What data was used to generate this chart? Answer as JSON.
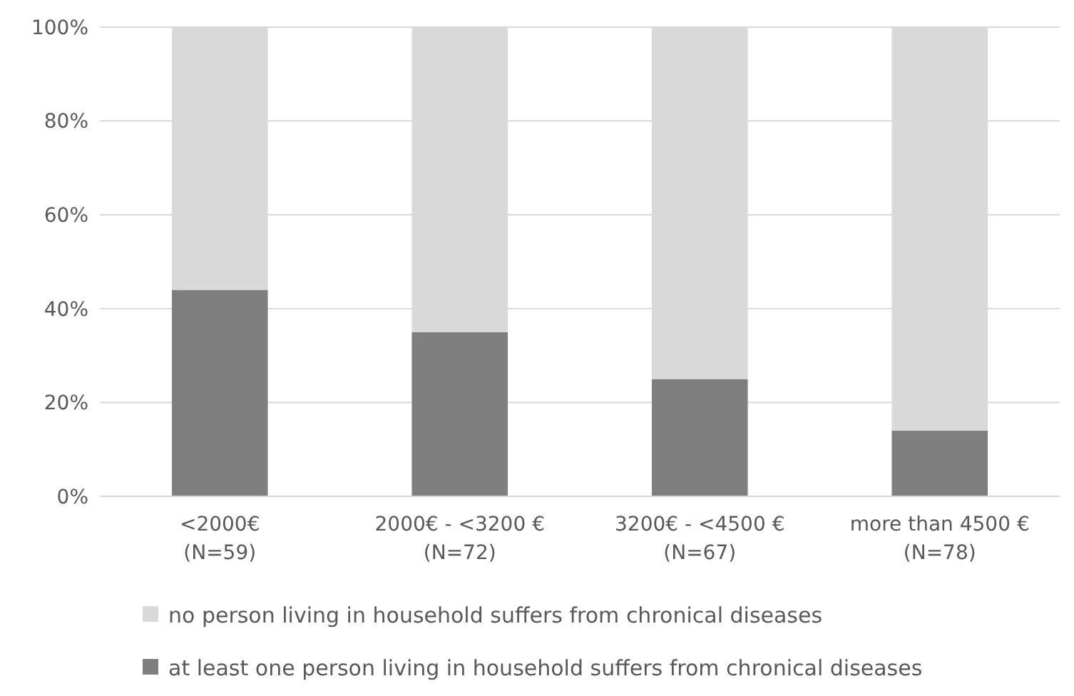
{
  "chart_data": {
    "type": "bar",
    "stacked": true,
    "categories": [
      "<2000€\n(N=59)",
      "2000€ - <3200 €\n(N=72)",
      "3200€ - <4500 €\n(N=67)",
      "more  than 4500 €\n(N=78)"
    ],
    "series": [
      {
        "name": "at least one person living in household suffers from chronical diseases",
        "color": "#7f7f7f",
        "values": [
          44,
          35,
          25,
          14
        ]
      },
      {
        "name": "no person living in household suffers from chronical diseases",
        "color": "#d9d9d9",
        "values": [
          56,
          65,
          75,
          86
        ]
      }
    ],
    "ylim": [
      0,
      100
    ],
    "yticks": [
      {
        "value": 0,
        "label": "0%"
      },
      {
        "value": 20,
        "label": "20%"
      },
      {
        "value": 40,
        "label": "40%"
      },
      {
        "value": 60,
        "label": "60%"
      },
      {
        "value": 80,
        "label": "80%"
      },
      {
        "value": 100,
        "label": "100%"
      }
    ],
    "grid": "y",
    "legend": "bottom"
  }
}
